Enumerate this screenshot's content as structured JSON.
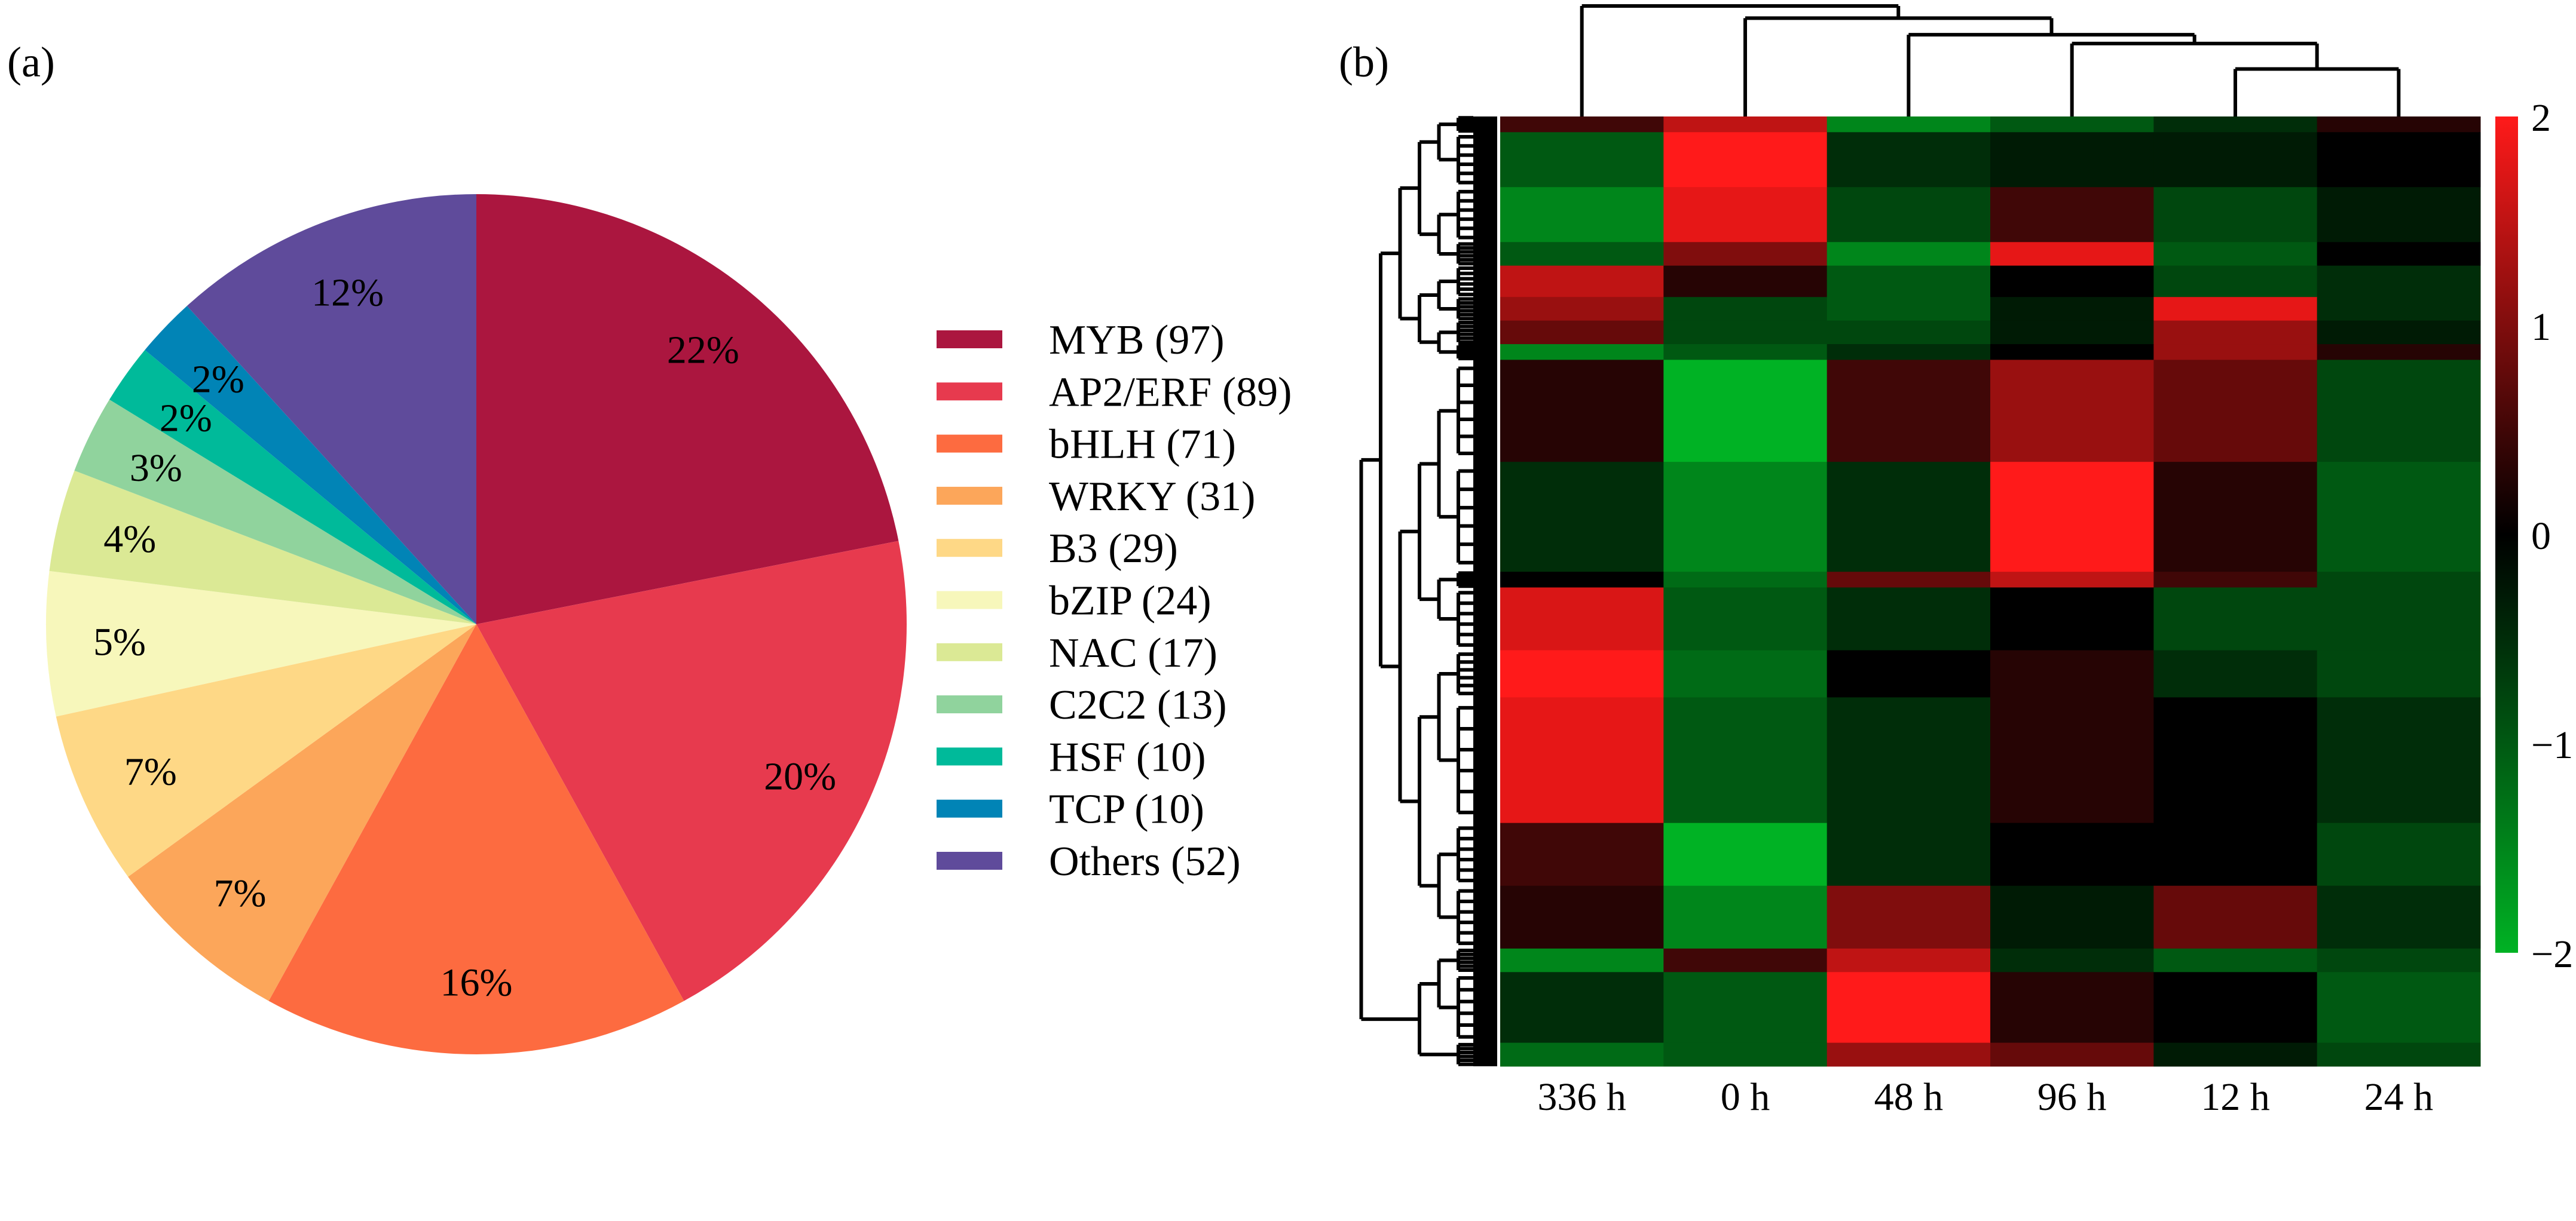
{
  "chart_data": [
    {
      "type": "pie",
      "panel_label": "(a)",
      "title": "",
      "start": "top, clockwise",
      "slices": [
        {
          "name": "MYB",
          "count": 97,
          "legend": "MYB (97)",
          "pct_label": "22%",
          "color": "#ab163f"
        },
        {
          "name": "AP2/ERF",
          "count": 89,
          "legend": "AP2/ERF (89)",
          "pct_label": "20%",
          "color": "#e73a4e"
        },
        {
          "name": "bHLH",
          "count": 71,
          "legend": "bHLH (71)",
          "pct_label": "16%",
          "color": "#fd6b40"
        },
        {
          "name": "WRKY",
          "count": 31,
          "legend": "WRKY (31)",
          "pct_label": "7%",
          "color": "#fca65a"
        },
        {
          "name": "B3",
          "count": 29,
          "legend": "B3 (29)",
          "pct_label": "7%",
          "color": "#fed886"
        },
        {
          "name": "bZIP",
          "count": 24,
          "legend": "bZIP (24)",
          "pct_label": "5%",
          "color": "#f7f7bb"
        },
        {
          "name": "NAC",
          "count": 17,
          "legend": "NAC (17)",
          "pct_label": "4%",
          "color": "#dbe995"
        },
        {
          "name": "C2C2",
          "count": 13,
          "legend": "C2C2 (13)",
          "pct_label": "3%",
          "color": "#90d39d"
        },
        {
          "name": "HSF",
          "count": 10,
          "legend": "HSF (10)",
          "pct_label": "2%",
          "color": "#00ba9a"
        },
        {
          "name": "TCP",
          "count": 10,
          "legend": "TCP (10)",
          "pct_label": "2%",
          "color": "#0184b6"
        },
        {
          "name": "Others",
          "count": 52,
          "legend": "Others (52)",
          "pct_label": "12%",
          "color": "#5f4b9b"
        }
      ],
      "legend_placement": "right"
    },
    {
      "type": "heatmap",
      "panel_label": "(b)",
      "columns": [
        "336 h",
        "0 h",
        "48 h",
        "96 h",
        "12 h",
        "24 h"
      ],
      "column_dendrogram_heights": {
        "336 h|rest": 1.0,
        "0 h|rest": 0.89,
        "48 h|rest": 0.74,
        "96 h|rest": 0.66,
        "12 h|24 h": 0.43
      },
      "colorbar": {
        "min": -2,
        "max": 2,
        "ticks": [
          "2",
          "1",
          "0",
          "−1",
          "−2"
        ],
        "low_color": "#00b224",
        "mid_color": "#000000",
        "high_color": "#ff1a1a"
      },
      "row_blocks_note": "approximate row blocks, top to bottom; weight = relative share of rows",
      "row_blocks": [
        {
          "weight": 10,
          "values": [
            0.5,
            1.5,
            -1.5,
            -1.0,
            -0.5,
            0.3
          ]
        },
        {
          "weight": 35,
          "values": [
            -1.0,
            2.0,
            -0.5,
            -0.3,
            -0.3,
            0.0
          ]
        },
        {
          "weight": 35,
          "values": [
            -1.5,
            1.8,
            -0.8,
            0.5,
            -0.8,
            -0.3
          ]
        },
        {
          "weight": 15,
          "values": [
            -1.0,
            1.0,
            -1.5,
            1.8,
            -1.0,
            0.0
          ]
        },
        {
          "weight": 20,
          "values": [
            1.5,
            0.3,
            -1.0,
            0.0,
            -0.8,
            -0.5
          ]
        },
        {
          "weight": 15,
          "values": [
            1.2,
            -0.8,
            -1.0,
            -0.3,
            1.8,
            -0.5
          ]
        },
        {
          "weight": 15,
          "values": [
            0.8,
            -0.8,
            -0.8,
            -0.3,
            1.2,
            -0.3
          ]
        },
        {
          "weight": 10,
          "values": [
            -1.5,
            -1.0,
            -0.5,
            0.0,
            1.2,
            0.3
          ]
        },
        {
          "weight": 65,
          "values": [
            0.3,
            -2.0,
            0.5,
            1.2,
            0.8,
            -0.8
          ]
        },
        {
          "weight": 70,
          "values": [
            -0.5,
            -1.5,
            -0.5,
            2.0,
            0.3,
            -1.0
          ]
        },
        {
          "weight": 10,
          "values": [
            0.0,
            -1.2,
            0.8,
            1.5,
            0.5,
            -0.8
          ]
        },
        {
          "weight": 40,
          "values": [
            1.7,
            -1.0,
            -0.5,
            0.0,
            -0.8,
            -0.8
          ]
        },
        {
          "weight": 30,
          "values": [
            2.0,
            -1.2,
            0.0,
            0.3,
            -0.5,
            -0.8
          ]
        },
        {
          "weight": 80,
          "values": [
            1.8,
            -1.0,
            -0.5,
            0.3,
            0.0,
            -0.5
          ]
        },
        {
          "weight": 40,
          "values": [
            0.5,
            -2.0,
            -0.5,
            0.0,
            0.0,
            -0.8
          ]
        },
        {
          "weight": 40,
          "values": [
            0.3,
            -1.5,
            1.0,
            -0.3,
            0.8,
            -0.5
          ]
        },
        {
          "weight": 15,
          "values": [
            -1.5,
            0.5,
            1.5,
            -0.5,
            -1.0,
            -0.8
          ]
        },
        {
          "weight": 45,
          "values": [
            -0.5,
            -1.0,
            2.0,
            0.3,
            0.0,
            -1.0
          ]
        },
        {
          "weight": 15,
          "values": [
            -1.2,
            -1.0,
            1.2,
            0.8,
            -0.3,
            -0.8
          ]
        }
      ]
    }
  ]
}
